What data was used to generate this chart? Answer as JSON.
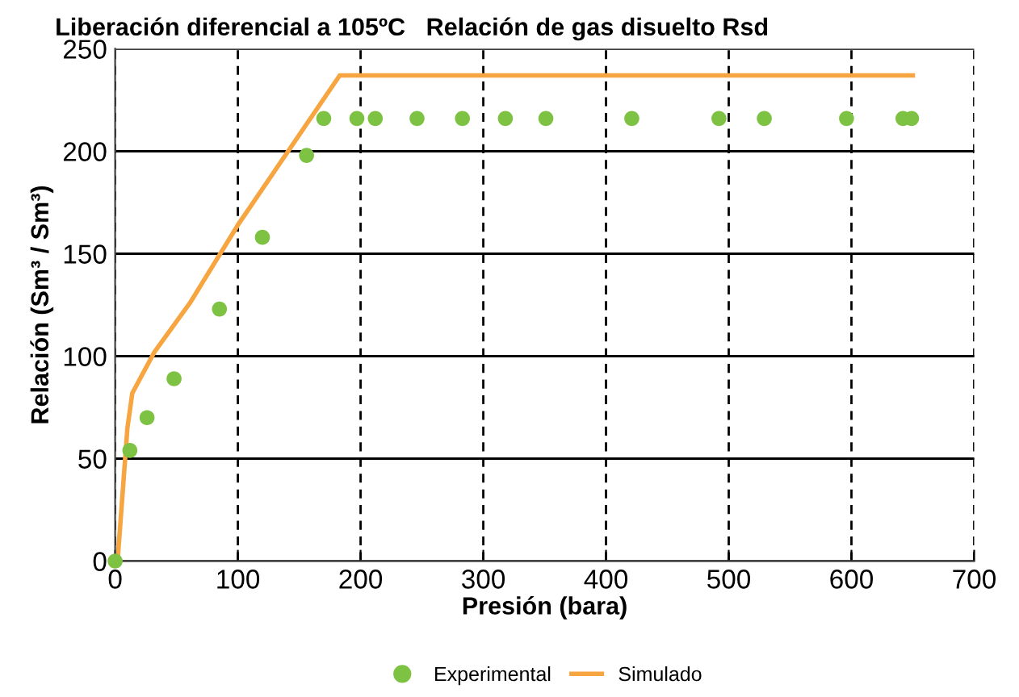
{
  "chart_data": {
    "type": "scatter",
    "title": "Liberación diferencial a 105ºC   Relación de gas disuelto Rsd",
    "xlabel": "Presión (bara)",
    "ylabel": "Relación (Sm³ / Sm³)",
    "xlim": [
      0,
      700
    ],
    "ylim": [
      0,
      250
    ],
    "xticks": [
      0,
      100,
      200,
      300,
      400,
      500,
      600,
      700
    ],
    "yticks": [
      0,
      50,
      100,
      150,
      200,
      250
    ],
    "grid": true,
    "legend": "bottom",
    "series": [
      {
        "name": "Experimental",
        "marker": "circle",
        "color": "#7dc242",
        "x": [
          0,
          12,
          26,
          48,
          85,
          120,
          156,
          170,
          197,
          212,
          246,
          283,
          318,
          351,
          421,
          492,
          529,
          596,
          642,
          649
        ],
        "values": [
          0,
          54,
          70,
          89,
          123,
          158,
          198,
          216,
          216,
          216,
          216,
          216,
          216,
          216,
          216,
          216,
          216,
          216,
          216,
          216
        ]
      },
      {
        "name": "Simulado",
        "type": "line",
        "marker": "none",
        "line_style": "solid",
        "color": "#f7a541",
        "x": [
          2,
          10,
          14,
          32,
          61,
          100,
          183,
          650
        ],
        "values": [
          0,
          65,
          82,
          102,
          126,
          164,
          237,
          237
        ]
      }
    ]
  }
}
